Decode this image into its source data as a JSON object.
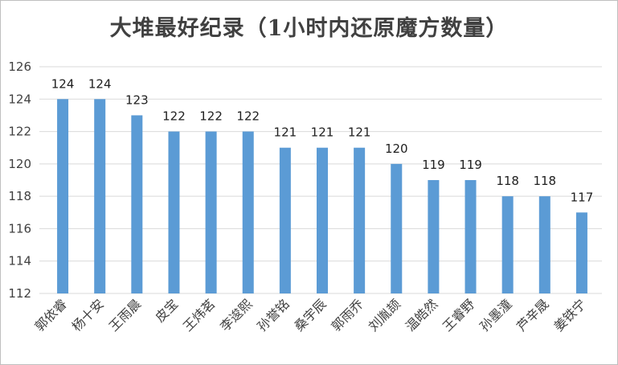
{
  "chart_data": {
    "type": "bar",
    "title": "大堆最好纪录（1小时内还原魔方数量）",
    "xlabel": "",
    "ylabel": "",
    "ylim": [
      112,
      126
    ],
    "yticks": [
      112,
      114,
      116,
      118,
      120,
      122,
      124,
      126
    ],
    "grid": true,
    "legend": "none",
    "bar_color": "#5b9bd5",
    "categories": [
      "郭依睿",
      "杨十安",
      "王雨晨",
      "皮宝",
      "王炜茗",
      "李逡熙",
      "孙誉铭",
      "桑宇辰",
      "郭雨乔",
      "刘胤颉",
      "温皓然",
      "王睿野",
      "孙墨潼",
      "芦辛晟",
      "姜铁宁"
    ],
    "values": [
      124,
      124,
      123,
      122,
      122,
      122,
      121,
      121,
      121,
      120,
      119,
      119,
      118,
      118,
      117
    ]
  }
}
